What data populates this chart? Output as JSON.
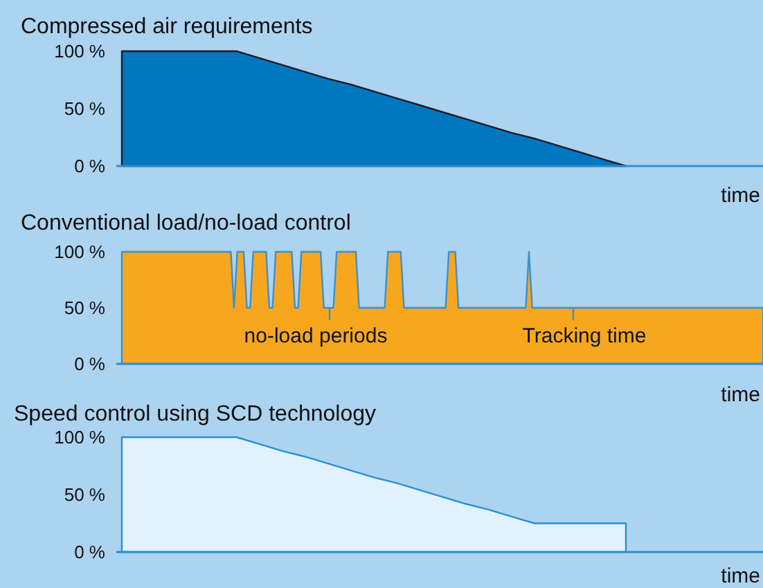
{
  "chart_data": [
    {
      "type": "area",
      "title": "Compressed air requirements",
      "xlabel": "time",
      "categories": [
        null,
        null,
        null,
        null,
        null,
        null,
        null,
        null,
        null,
        null,
        null,
        null,
        null,
        null,
        null,
        null,
        null,
        null,
        null,
        null,
        null,
        null,
        null
      ],
      "series": [
        {
          "color": "#0077be",
          "values": [
            100,
            100,
            100,
            100,
            100,
            100,
            94,
            88,
            82,
            76,
            71,
            65,
            59,
            53,
            47,
            41,
            35,
            29,
            24,
            18,
            12,
            6,
            0
          ]
        }
      ],
      "ylim": [
        0,
        100
      ],
      "yticks": [
        {
          "value": 0,
          "label": "0 %"
        },
        {
          "value": 50,
          "label": "50 %"
        },
        {
          "value": 100,
          "label": "100 %"
        }
      ]
    },
    {
      "type": "area",
      "title": "Conventional load/no-load control",
      "xlabel": "time",
      "annotations": [
        "no-load periods",
        "Tracking time"
      ],
      "categories": [
        null,
        null,
        null,
        null,
        null,
        null,
        null,
        null,
        null,
        null,
        null,
        null,
        null,
        null,
        null,
        null,
        null,
        null,
        null,
        null,
        null,
        null,
        null,
        null,
        null,
        null,
        null,
        null,
        null,
        null,
        null,
        null,
        null,
        null,
        null,
        null,
        null,
        null,
        null,
        null,
        null,
        null,
        null,
        null,
        null,
        null,
        null,
        null,
        null,
        null,
        null,
        null,
        null,
        null,
        null,
        null,
        null,
        null,
        null,
        null,
        null,
        null,
        null,
        null,
        null,
        null,
        null,
        null,
        null,
        null,
        null,
        null,
        null,
        null,
        null,
        null,
        null,
        null,
        null,
        null,
        null,
        null,
        null,
        null,
        null,
        null,
        null,
        null,
        null,
        null,
        null,
        null,
        null,
        null,
        null,
        null,
        null,
        null,
        null,
        null,
        null,
        null,
        null,
        null,
        null,
        null,
        null,
        null,
        null,
        null,
        null,
        null,
        null,
        null,
        null,
        null,
        null,
        null,
        null,
        null,
        null,
        null,
        null,
        null,
        null,
        null,
        null,
        null,
        null,
        null,
        null,
        null,
        null,
        null,
        null,
        null,
        null,
        null,
        null,
        null,
        null,
        null,
        null,
        null,
        null,
        null,
        null,
        null,
        null,
        null,
        null,
        null,
        null,
        null,
        null,
        null,
        null,
        null,
        null,
        null,
        null,
        null,
        null,
        null,
        null,
        null,
        null,
        null,
        null,
        null,
        null,
        null,
        null,
        null,
        null,
        null,
        null,
        null,
        null,
        null,
        null,
        null,
        null,
        null,
        null,
        null,
        null,
        null,
        null,
        null,
        null,
        null,
        null,
        null,
        null,
        null,
        null,
        null,
        null,
        null,
        null
      ],
      "series": [
        {
          "color": "#f7a71e",
          "values": [
            100,
            100,
            100,
            100,
            100,
            100,
            100,
            100,
            100,
            100,
            100,
            100,
            100,
            100,
            100,
            100,
            100,
            100,
            100,
            100,
            100,
            100,
            100,
            100,
            100,
            100,
            100,
            100,
            100,
            100,
            100,
            100,
            100,
            100,
            100,
            50,
            100,
            100,
            100,
            50,
            50,
            100,
            100,
            100,
            100,
            100,
            50,
            50,
            100,
            100,
            100,
            100,
            100,
            100,
            50,
            50,
            100,
            100,
            100,
            100,
            100,
            100,
            100,
            50,
            50,
            50,
            50,
            100,
            100,
            100,
            100,
            100,
            100,
            100,
            50,
            50,
            50,
            50,
            50,
            50,
            50,
            50,
            50,
            100,
            100,
            100,
            100,
            100,
            50,
            50,
            50,
            50,
            50,
            50,
            50,
            50,
            50,
            50,
            50,
            50,
            50,
            50,
            100,
            100,
            100,
            50,
            50,
            50,
            50,
            50,
            50,
            50,
            50,
            50,
            50,
            50,
            50,
            50,
            50,
            50,
            50,
            50,
            50,
            50,
            50,
            50,
            50,
            100,
            50,
            50,
            50,
            50,
            50,
            50,
            50,
            50,
            50,
            50,
            50,
            50,
            50,
            50,
            50,
            50,
            50,
            50,
            50,
            50,
            50,
            50,
            50,
            50,
            50,
            50,
            50,
            50,
            50,
            50,
            50,
            50,
            50,
            50,
            50,
            50,
            50,
            50,
            50,
            50,
            50,
            50,
            50,
            50,
            50,
            50,
            50,
            50,
            50,
            50,
            50,
            50,
            50,
            50,
            50,
            50,
            50,
            50,
            50,
            50,
            50,
            50,
            50,
            50,
            50,
            50,
            50,
            50,
            50,
            50,
            50,
            50,
            50
          ]
        }
      ],
      "ylim": [
        0,
        100
      ],
      "yticks": [
        {
          "value": 0,
          "label": "0 %"
        },
        {
          "value": 50,
          "label": "50 %"
        },
        {
          "value": 100,
          "label": "100 %"
        }
      ]
    },
    {
      "type": "area",
      "title": "Speed control using SCD technology",
      "xlabel": "time",
      "categories": [
        null,
        null,
        null,
        null,
        null,
        null,
        null,
        null,
        null,
        null,
        null,
        null,
        null,
        null,
        null,
        null,
        null,
        null,
        null,
        null,
        null,
        null,
        null
      ],
      "series": [
        {
          "color": "#e1f2fc",
          "values": [
            100,
            100,
            100,
            100,
            100,
            100,
            94,
            88,
            83,
            77,
            71,
            65,
            60,
            54,
            48,
            42,
            37,
            31,
            25,
            25,
            25,
            25,
            25
          ]
        }
      ],
      "ylim": [
        0,
        100
      ],
      "yticks": [
        {
          "value": 0,
          "label": "0 %"
        },
        {
          "value": 50,
          "label": "50 %"
        },
        {
          "value": 100,
          "label": "100 %"
        }
      ]
    }
  ]
}
